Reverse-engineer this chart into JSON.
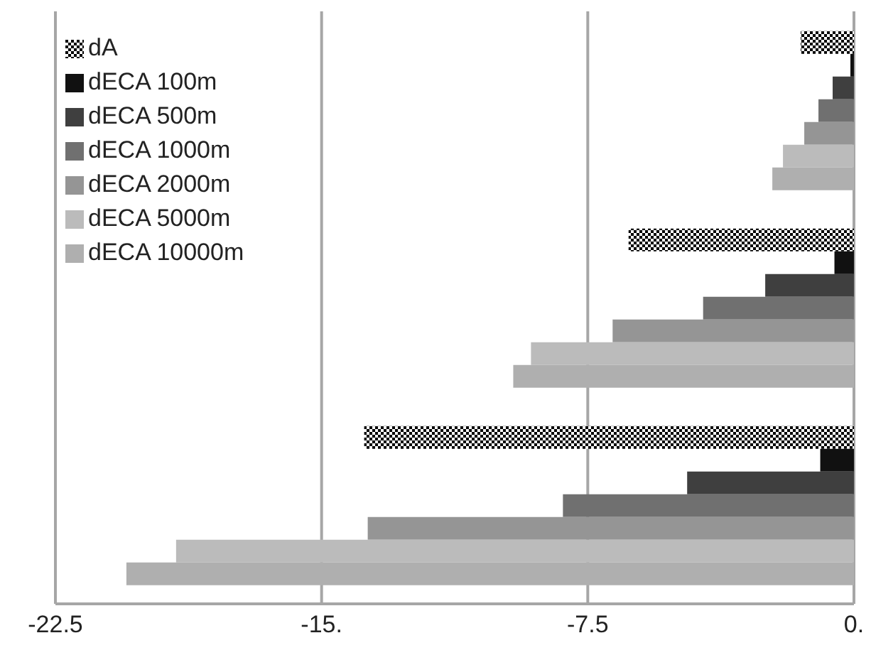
{
  "chart_data": {
    "type": "bar",
    "orientation": "horizontal",
    "categories": [
      null,
      null,
      null
    ],
    "series": [
      {
        "name": "dA",
        "color": "#000000",
        "values": [
          -1.5,
          -6.35,
          -13.8
        ]
      },
      {
        "name": "dECA 100m",
        "color": "#111111",
        "values": [
          -0.1,
          -0.55,
          -0.95
        ]
      },
      {
        "name": "dECA 500m",
        "color": "#3f3f3f",
        "values": [
          -0.6,
          -2.5,
          -4.7
        ]
      },
      {
        "name": "dECA 1000m",
        "color": "#707070",
        "values": [
          -1.0,
          -4.25,
          -8.2
        ]
      },
      {
        "name": "dECA 2000m",
        "color": "#959595",
        "values": [
          -1.4,
          -6.8,
          -13.7
        ]
      },
      {
        "name": "dECA 5000m",
        "color": "#bbbbbb",
        "values": [
          -2.0,
          -9.1,
          -19.1
        ]
      },
      {
        "name": "dECA 10000m",
        "color": "#afafaf",
        "values": [
          -2.3,
          -9.6,
          -20.5
        ]
      }
    ],
    "xlim": [
      -22.5,
      0
    ],
    "xticks": [
      -22.5,
      {
        "value": -15,
        "label": "-15."
      },
      -7.5,
      {
        "value": 0,
        "label": "0."
      }
    ],
    "grid": "x",
    "legend": "top left"
  }
}
